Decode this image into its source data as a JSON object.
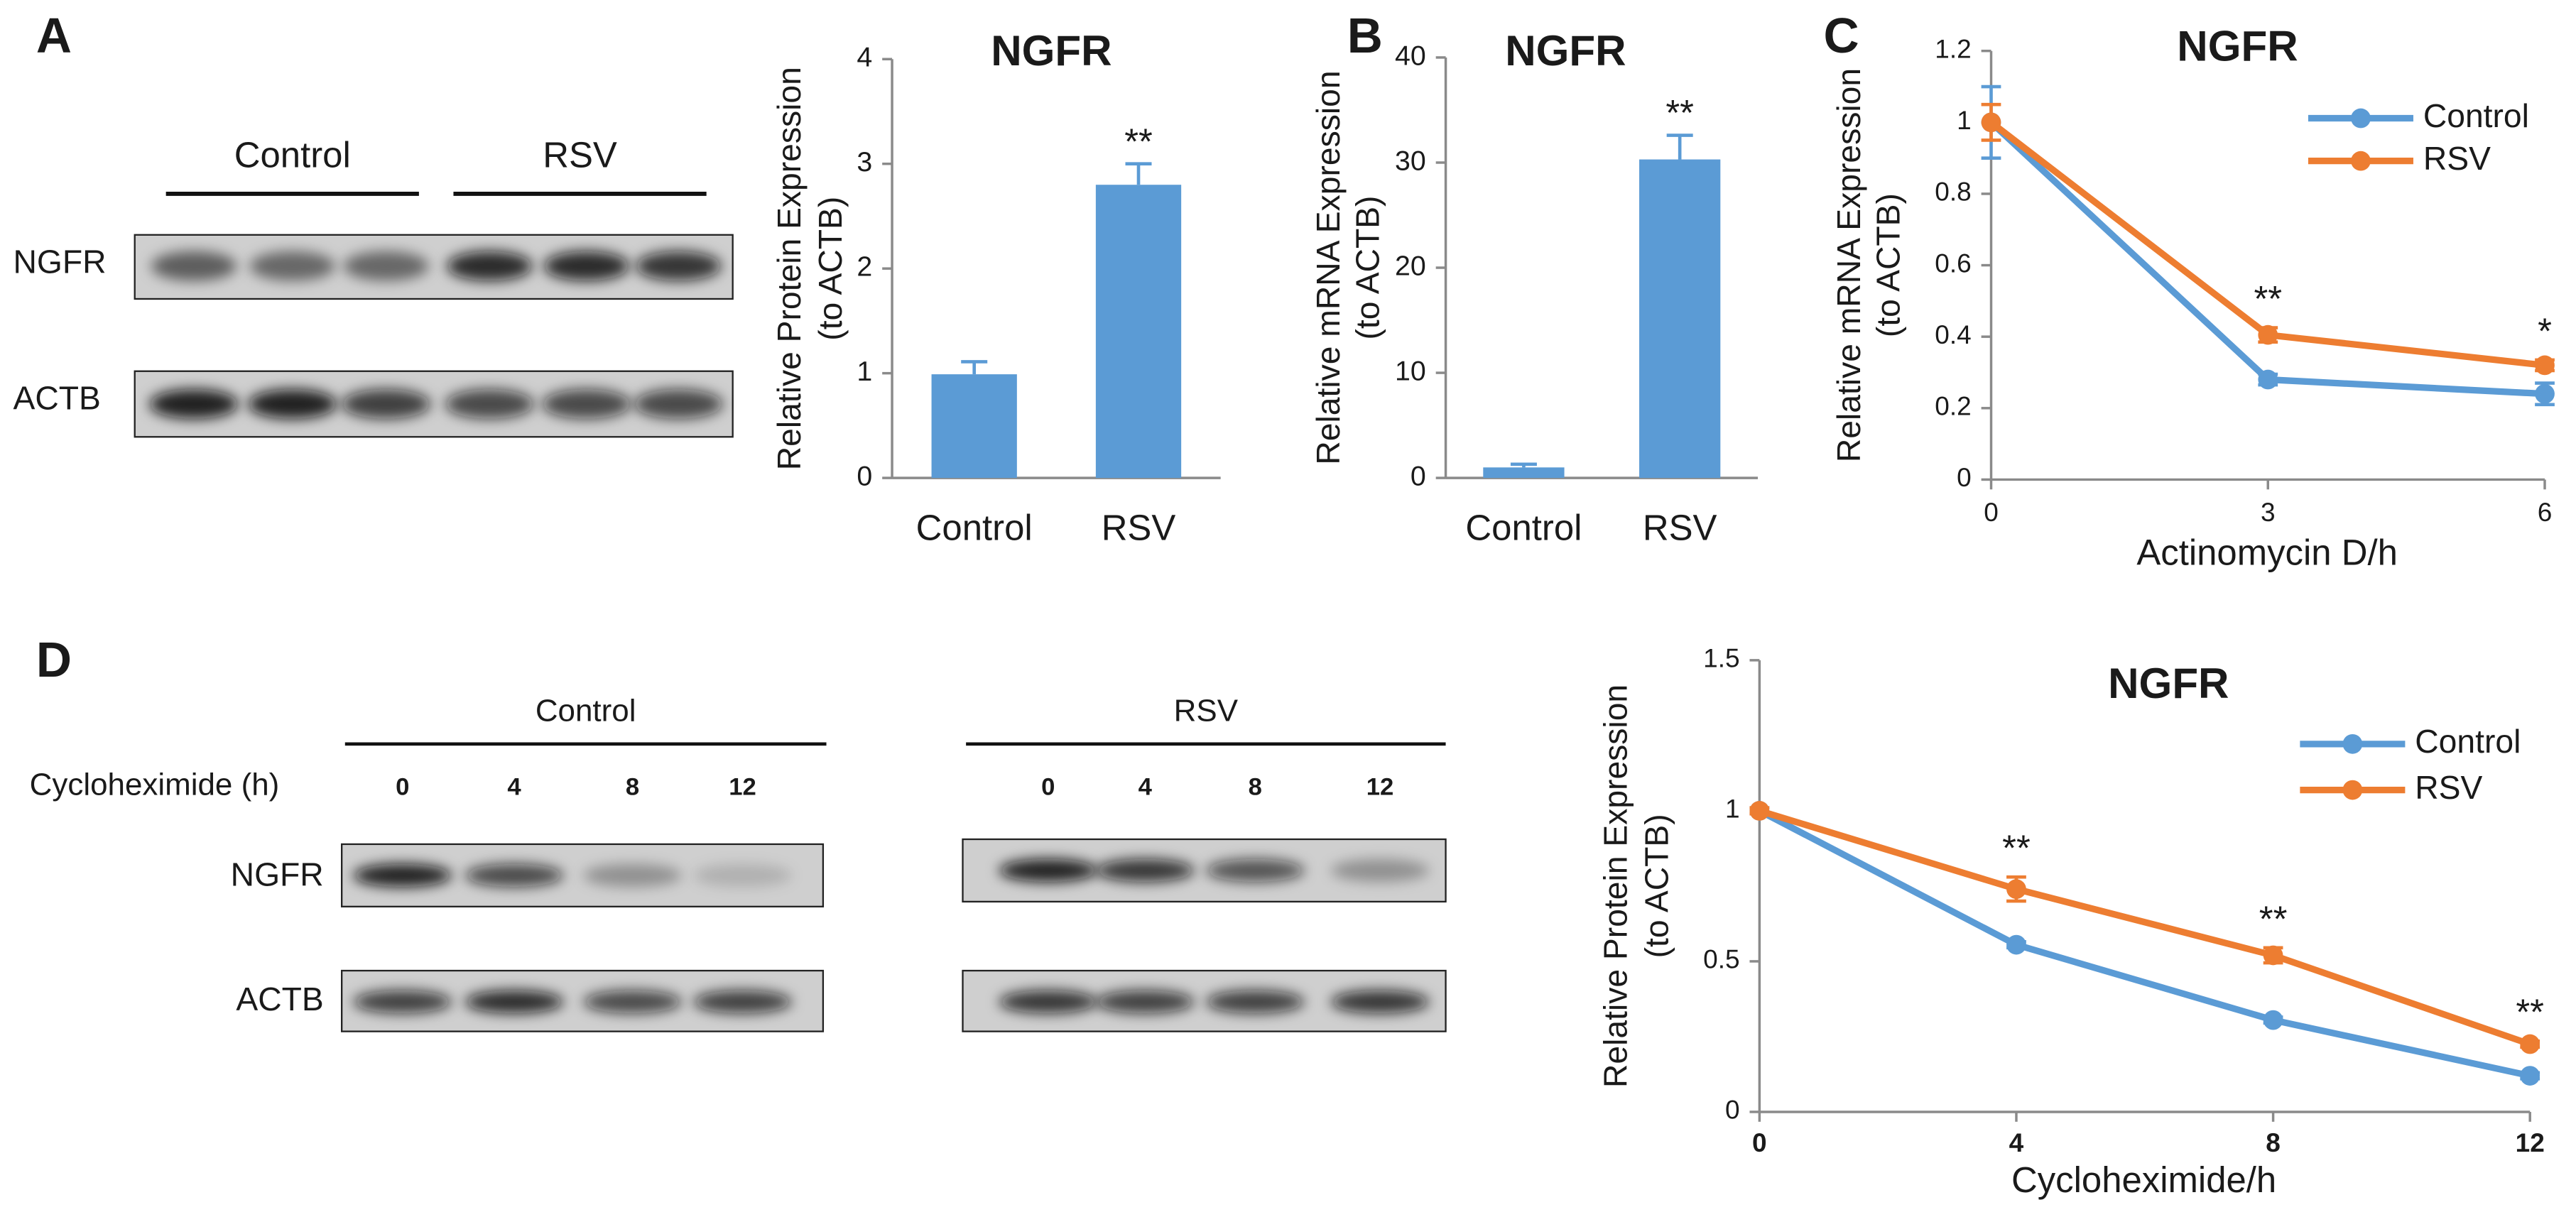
{
  "panel_labels": [
    "A",
    "B",
    "C",
    "D"
  ],
  "blots": {
    "A": {
      "groups": [
        "Control",
        "RSV"
      ],
      "rows": [
        "NGFR",
        "ACTB"
      ]
    },
    "D": {
      "lane_label": "Cycloheximide (h)",
      "groups": [
        {
          "name": "Control",
          "lanes": [
            "0",
            "4",
            "8",
            "12"
          ]
        },
        {
          "name": "RSV",
          "lanes": [
            "0",
            "4",
            "8",
            "12"
          ]
        }
      ],
      "rows": [
        "NGFR",
        "ACTB"
      ]
    }
  },
  "chart_data": [
    {
      "type": "bar",
      "title": "NGFR",
      "y_label": [
        "Relative Protein Expression",
        "(to ACTB)"
      ],
      "categories": [
        "Control",
        "RSV"
      ],
      "values": [
        0.99,
        2.8
      ],
      "errors": [
        0.12,
        0.2
      ],
      "significance": [
        null,
        "**"
      ],
      "color": "#5b9bd5",
      "ylim": [
        0,
        4
      ],
      "yticks": [
        0,
        1,
        2,
        3,
        4
      ]
    },
    {
      "type": "bar",
      "title": "NGFR",
      "y_label": [
        "Relative mRNA Expression",
        "(to ACTB)"
      ],
      "categories": [
        "Control",
        "RSV"
      ],
      "values": [
        1,
        30.3
      ],
      "errors": [
        0.3,
        2.3
      ],
      "significance": [
        null,
        "**"
      ],
      "color": "#5b9bd5",
      "ylim": [
        0,
        40
      ],
      "yticks": [
        0,
        10,
        20,
        30,
        40
      ]
    },
    {
      "type": "line",
      "title": "NGFR",
      "x_label": "Actinomycin D/h",
      "y_label": [
        "Relative mRNA Expression",
        "(to ACTB)"
      ],
      "x": [
        0,
        3,
        6
      ],
      "xlim": [
        0,
        6
      ],
      "xticks": [
        0,
        3,
        6
      ],
      "ylim": [
        0,
        1.2
      ],
      "yticks": [
        0,
        0.2,
        0.4,
        0.6,
        0.8,
        1,
        1.2
      ],
      "series": [
        {
          "name": "Control",
          "color": "#5b9bd5",
          "values": [
            1,
            0.28,
            0.24
          ],
          "errors": [
            0.1,
            0.015,
            0.03
          ]
        },
        {
          "name": "RSV",
          "color": "#ed7d31",
          "values": [
            1,
            0.405,
            0.32
          ],
          "errors": [
            0.05,
            0.02,
            0.015
          ]
        }
      ],
      "significance": [
        null,
        "**",
        "*"
      ],
      "legend": "upper right"
    },
    {
      "type": "line",
      "title": "NGFR",
      "x_label": "Cycloheximide/h",
      "y_label": [
        "Relative Protein Expression",
        "(to ACTB)"
      ],
      "x": [
        0,
        4,
        8,
        12
      ],
      "xlim": [
        0,
        12
      ],
      "xticks": [
        0,
        4,
        8,
        12
      ],
      "ylim": [
        0,
        1.5
      ],
      "yticks": [
        0,
        0.5,
        1,
        1.5
      ],
      "series": [
        {
          "name": "Control",
          "color": "#5b9bd5",
          "values": [
            1,
            0.555,
            0.305,
            0.12
          ],
          "errors": [
            0.01,
            0.01,
            0.01,
            0.01
          ]
        },
        {
          "name": "RSV",
          "color": "#ed7d31",
          "values": [
            1,
            0.74,
            0.52,
            0.225
          ],
          "errors": [
            0.01,
            0.04,
            0.025,
            0.01
          ]
        }
      ],
      "significance": [
        null,
        "**",
        "**",
        "**"
      ],
      "legend": "upper right"
    }
  ]
}
